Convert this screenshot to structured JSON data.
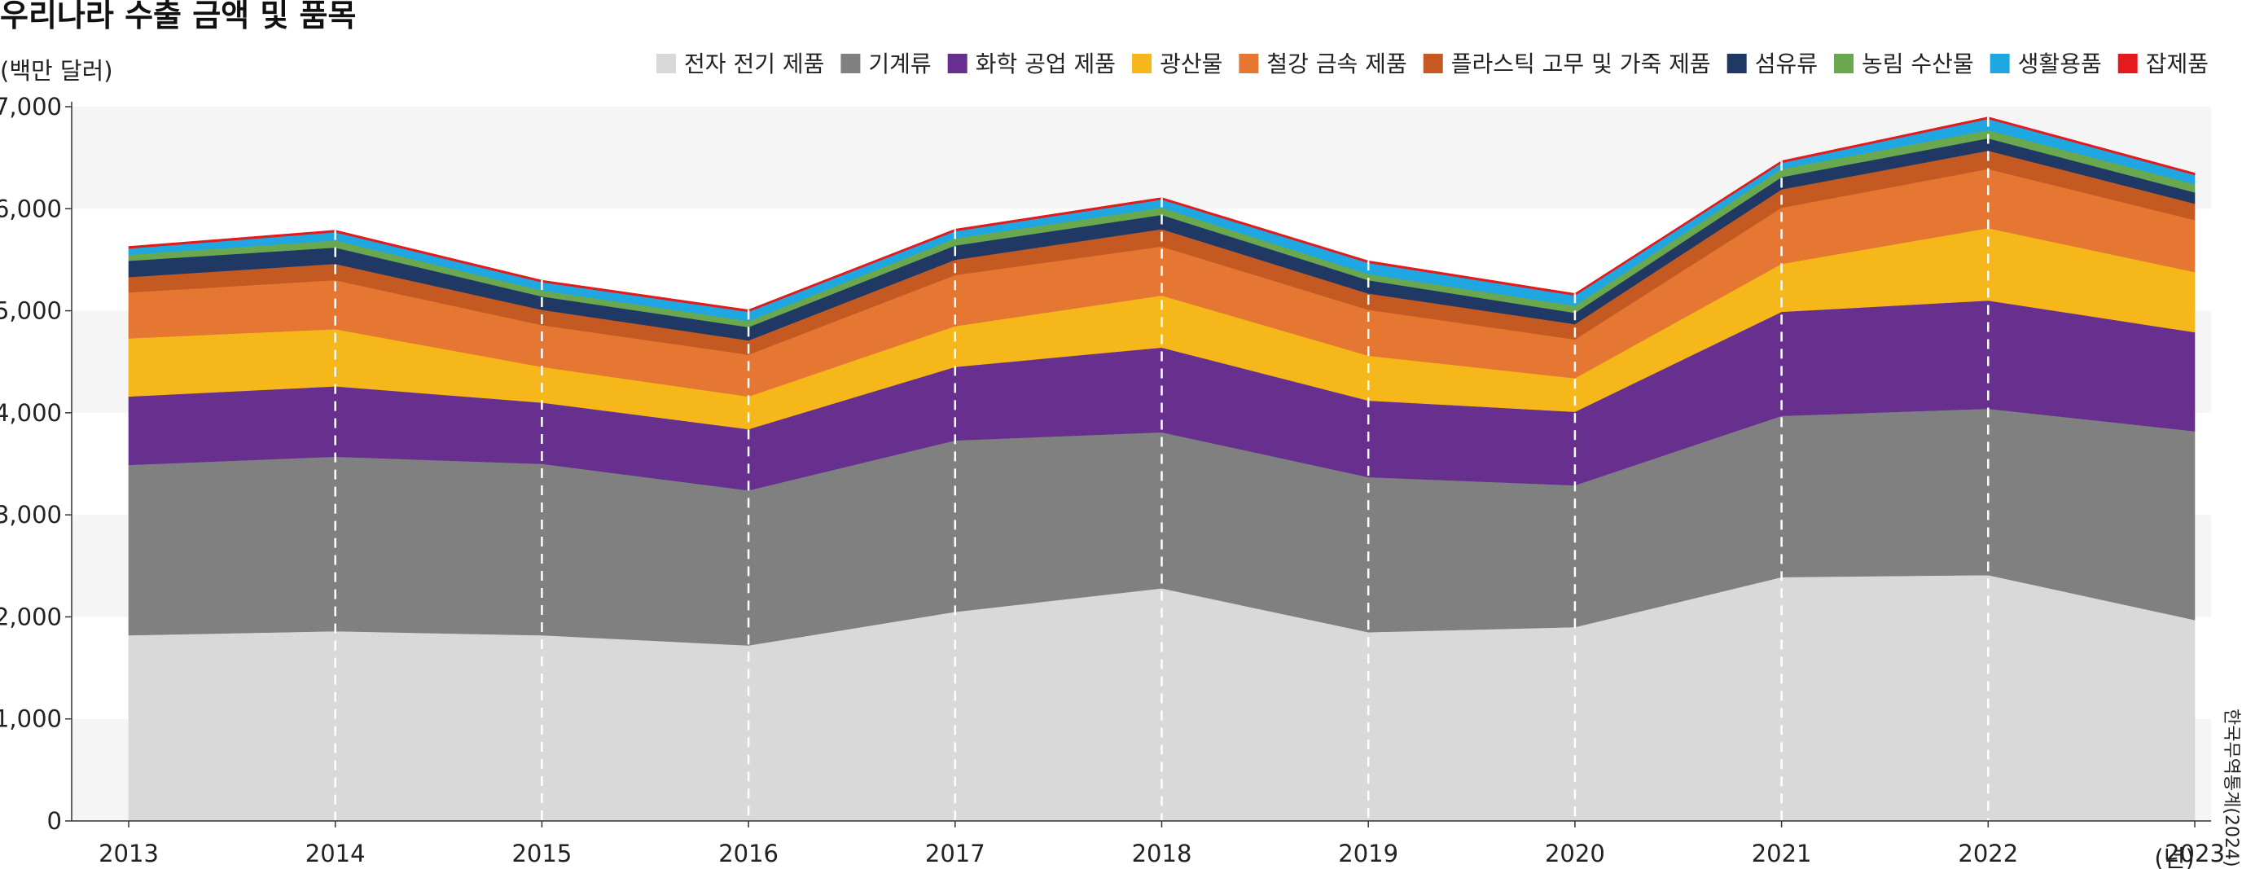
{
  "chart_data": {
    "type": "area",
    "stacked": true,
    "title": "우리나라 수출 금액 및 품목",
    "ylabel": "(백만 달러)",
    "xlabel_unit": "(년)",
    "source": "한국무역통계(2024)",
    "ylim": [
      0,
      7000
    ],
    "yticks": [
      0,
      1000,
      2000,
      3000,
      4000,
      5000,
      6000,
      7000
    ],
    "ytick_labels": [
      "0",
      "1,000",
      "2,000",
      "3,000",
      "4,000",
      "5,000",
      "6,000",
      "7,000"
    ],
    "x": [
      "2013",
      "2014",
      "2015",
      "2016",
      "2017",
      "2018",
      "2019",
      "2020",
      "2021",
      "2022",
      "2023"
    ],
    "grid": "alternating horizontal bands",
    "legend_position": "top-right",
    "series": [
      {
        "name": "전자 전기 제품",
        "color": "#d9d9d9",
        "values": [
          1820,
          1860,
          1820,
          1720,
          2050,
          2280,
          1850,
          1900,
          2390,
          2410,
          1970
        ]
      },
      {
        "name": "기계류",
        "color": "#808080",
        "values": [
          1670,
          1710,
          1680,
          1520,
          1680,
          1530,
          1520,
          1390,
          1580,
          1630,
          1850
        ]
      },
      {
        "name": "화학 공업 제품",
        "color": "#67308f",
        "values": [
          670,
          690,
          600,
          600,
          720,
          830,
          750,
          720,
          1020,
          1060,
          970
        ]
      },
      {
        "name": "광산물",
        "color": "#f5b71a",
        "values": [
          570,
          560,
          350,
          320,
          400,
          510,
          440,
          330,
          470,
          710,
          590
        ]
      },
      {
        "name": "철강 금속 제품",
        "color": "#e57733",
        "values": [
          450,
          480,
          410,
          410,
          500,
          480,
          450,
          380,
          550,
          580,
          510
        ]
      },
      {
        "name": "플라스틱 고무 및 가죽 제품",
        "color": "#c45a22",
        "values": [
          150,
          160,
          150,
          140,
          150,
          170,
          160,
          150,
          180,
          180,
          160
        ]
      },
      {
        "name": "섬유류",
        "color": "#1f3864",
        "values": [
          160,
          160,
          130,
          130,
          140,
          140,
          130,
          110,
          120,
          120,
          110
        ]
      },
      {
        "name": "농림 수산물",
        "color": "#6aa84f",
        "values": [
          60,
          70,
          60,
          60,
          70,
          70,
          60,
          70,
          80,
          80,
          80
        ]
      },
      {
        "name": "생활용품",
        "color": "#1ea7e1",
        "values": [
          60,
          80,
          80,
          90,
          70,
          80,
          110,
          100,
          60,
          110,
          90
        ]
      },
      {
        "name": "잡제품",
        "color": "#e41a1c",
        "values": [
          20,
          20,
          20,
          20,
          20,
          20,
          20,
          20,
          20,
          20,
          20
        ]
      }
    ]
  }
}
